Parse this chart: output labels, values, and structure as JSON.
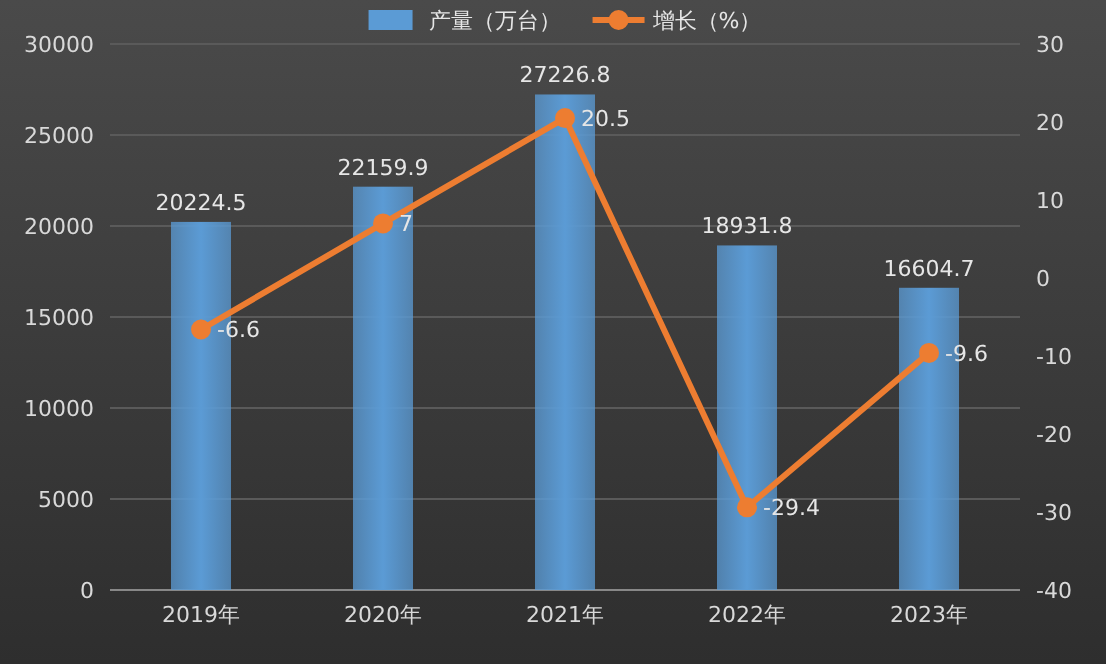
{
  "chart_data": {
    "type": "bar",
    "categories": [
      "2019年",
      "2020年",
      "2021年",
      "2022年",
      "2023年"
    ],
    "series": [
      {
        "name": "产量（万台）",
        "color": "#5b9bd5",
        "values": [
          20224.5,
          22159.9,
          27226.8,
          18931.8,
          16604.7
        ]
      },
      {
        "name": "增长（%）",
        "type": "line",
        "axis": "y2",
        "color": "#ed7d31",
        "values": [
          -6.6,
          7,
          20.5,
          -29.4,
          -9.6
        ]
      }
    ],
    "ylim": [
      0,
      30000
    ],
    "yticks": [
      0,
      5000,
      10000,
      15000,
      20000,
      25000,
      30000
    ],
    "y2lim": [
      -40,
      30
    ],
    "y2ticks": [
      -40,
      -30,
      -20,
      -10,
      0,
      10,
      20,
      30
    ],
    "data_labels": true,
    "grid": "y",
    "legend": "top",
    "marker": "circle"
  }
}
